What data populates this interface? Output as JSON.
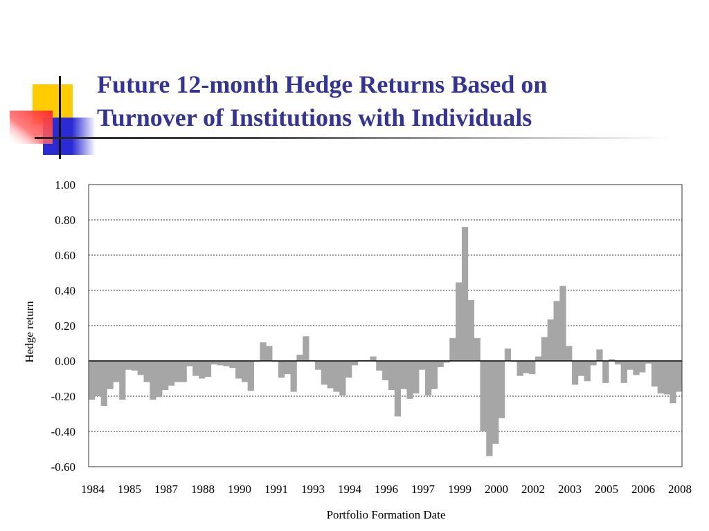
{
  "slide": {
    "title_line1": "Future 12-month Hedge Returns Based on",
    "title_line2": "Turnover of Institutions with Individuals"
  },
  "colors": {
    "title": "#333399",
    "bar": "#a6a6a6",
    "logo_yellow": "#ffcc00",
    "logo_blue": "#2b2bd6",
    "logo_red": "#ff3333"
  },
  "chart_data": {
    "type": "bar",
    "title": "",
    "xlabel": "Portfolio Formation Date",
    "ylabel": "Hedge return",
    "ylim": [
      -0.6,
      1.0
    ],
    "yticks": [
      1.0,
      0.8,
      0.6,
      0.4,
      0.2,
      0.0,
      -0.2,
      -0.4,
      -0.6
    ],
    "ytick_labels": [
      "1.00",
      "0.80",
      "0.60",
      "0.40",
      "0.20",
      "0.00",
      "-0.20",
      "-0.40",
      "-0.60"
    ],
    "xtick_labels": [
      "1984",
      "1985",
      "1987",
      "1988",
      "1990",
      "1991",
      "1993",
      "1994",
      "1996",
      "1997",
      "1999",
      "2000",
      "2002",
      "2003",
      "2005",
      "2006",
      "2008"
    ],
    "grid": "horizontal dotted",
    "legend": "none",
    "values": [
      -0.22,
      -0.2,
      -0.255,
      -0.16,
      -0.12,
      -0.22,
      -0.05,
      -0.055,
      -0.08,
      -0.12,
      -0.22,
      -0.205,
      -0.165,
      -0.14,
      -0.12,
      -0.12,
      -0.03,
      -0.085,
      -0.1,
      -0.09,
      -0.02,
      -0.025,
      -0.03,
      -0.04,
      -0.1,
      -0.12,
      -0.17,
      -0.005,
      0.105,
      0.085,
      -0.005,
      -0.095,
      -0.075,
      -0.175,
      0.035,
      0.14,
      0.005,
      -0.05,
      -0.135,
      -0.155,
      -0.175,
      -0.195,
      -0.095,
      -0.025,
      0.005,
      0.005,
      0.025,
      -0.055,
      -0.11,
      -0.165,
      -0.315,
      -0.16,
      -0.215,
      -0.185,
      -0.05,
      -0.195,
      -0.16,
      -0.035,
      -0.01,
      0.13,
      0.445,
      0.76,
      0.345,
      0.13,
      -0.4,
      -0.54,
      -0.47,
      -0.325,
      0.07,
      -0.005,
      -0.085,
      -0.07,
      -0.075,
      0.025,
      0.135,
      0.235,
      0.34,
      0.425,
      0.085,
      -0.135,
      -0.085,
      -0.115,
      -0.025,
      0.065,
      -0.125,
      0.01,
      -0.02,
      -0.125,
      -0.05,
      -0.08,
      -0.065,
      -0.015,
      -0.145,
      -0.185,
      -0.19,
      -0.24,
      -0.175
    ]
  }
}
